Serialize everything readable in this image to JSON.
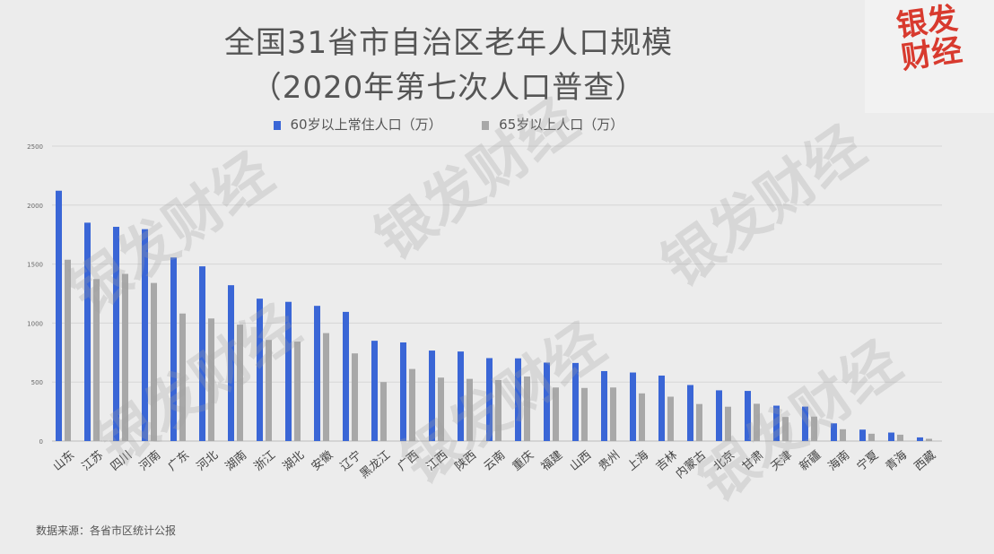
{
  "chart_data": {
    "type": "bar",
    "title": "全国31省市自治区老年人口规模",
    "subtitle": "（2020年第七次人口普查）",
    "categories": [
      "山东",
      "江苏",
      "四川",
      "河南",
      "广东",
      "河北",
      "湖南",
      "浙江",
      "湖北",
      "安徽",
      "辽宁",
      "黑龙江",
      "广西",
      "江西",
      "陕西",
      "云南",
      "重庆",
      "福建",
      "山西",
      "贵州",
      "上海",
      "吉林",
      "内蒙古",
      "北京",
      "甘肃",
      "天津",
      "新疆",
      "海南",
      "宁夏",
      "青海",
      "西藏"
    ],
    "series": [
      {
        "name": "60岁以上常住人口（万）",
        "color": "#3a66d6",
        "values": [
          2122,
          1851,
          1816,
          1796,
          1556,
          1481,
          1321,
          1207,
          1180,
          1146,
          1095,
          850,
          836,
          767,
          759,
          703,
          701,
          665,
          662,
          593,
          581,
          555,
          475,
          430,
          425,
          300,
          292,
          150,
          97,
          72,
          31
        ]
      },
      {
        "name": "65岁以上人口（万）",
        "color": "#a8a8a8",
        "values": [
          1537,
          1373,
          1417,
          1340,
          1081,
          1039,
          987,
          857,
          843,
          915,
          743,
          500,
          611,
          538,
          527,
          517,
          547,
          454,
          450,
          454,
          404,
          376,
          314,
          291,
          316,
          204,
          207,
          100,
          62,
          54,
          19
        ]
      }
    ],
    "yticks": [
      "0",
      "500",
      "1000",
      "1500",
      "2000",
      "2500"
    ],
    "ylim": [
      0,
      2500
    ],
    "grid": true,
    "legend": "top-center"
  },
  "source_text": "数据来源：各省市区统计公报",
  "logo_text": "银发财经",
  "watermark": "银发财经"
}
